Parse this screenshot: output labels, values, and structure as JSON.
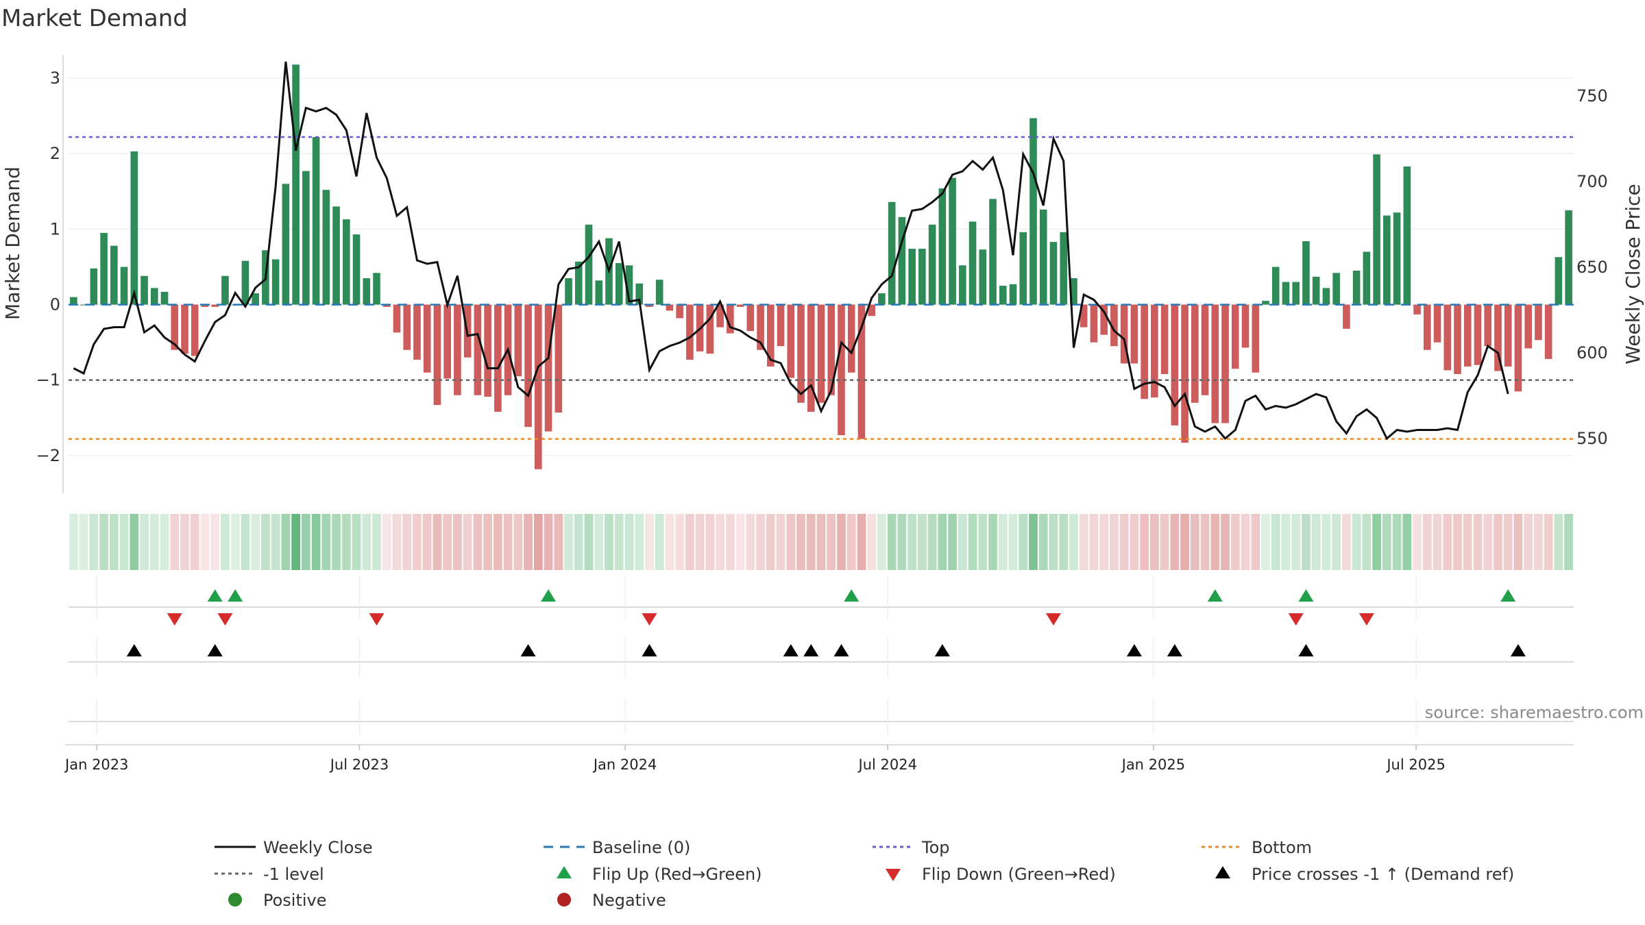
{
  "chart_data": {
    "type": "bar",
    "title": "Market Demand",
    "ylabel": "Market Demand",
    "y2label": "Weekly Close Price",
    "ylim": [
      -2.5,
      3.4
    ],
    "y2lim": [
      518,
      778
    ],
    "yticks": [
      -2,
      -1,
      0,
      1,
      2,
      3
    ],
    "y2ticks": [
      550,
      600,
      650,
      700,
      750
    ],
    "levels": {
      "top": 2.22,
      "bottom": -1.78,
      "ref": -1
    },
    "xtick_labels": [
      "Jan 2023",
      "Jul 2023",
      "Jan 2024",
      "Jul 2024",
      "Jan 2025",
      "Jul 2025"
    ],
    "xtick_weeks": [
      2.3,
      28.3,
      54.6,
      80.6,
      106.9,
      132.9
    ],
    "series": [
      {
        "name": "Market Demand",
        "values": [
          0.1,
          0,
          0.48,
          0.95,
          0.78,
          0.5,
          2.03,
          0.38,
          0.22,
          0.17,
          -0.6,
          -0.65,
          -0.68,
          -0.03,
          -0.03,
          0.38,
          0,
          0.58,
          0.15,
          0.72,
          0.6,
          1.6,
          3.18,
          1.77,
          2.22,
          1.52,
          1.3,
          1.13,
          0.93,
          0.35,
          0.42,
          -0.03,
          -0.37,
          -0.6,
          -0.73,
          -0.9,
          -1.33,
          -0.98,
          -1.2,
          -0.7,
          -1.2,
          -1.22,
          -1.42,
          -1.2,
          -0.95,
          -1.62,
          -2.18,
          -1.68,
          -1.43,
          0.35,
          0.57,
          1.06,
          0.32,
          0.88,
          0.55,
          0.52,
          0.28,
          -0.03,
          0.33,
          -0.08,
          -0.18,
          -0.73,
          -0.62,
          -0.65,
          -0.3,
          -0.38,
          -0.03,
          -0.35,
          -0.6,
          -0.82,
          -0.55,
          -0.97,
          -1.3,
          -1.42,
          -1.3,
          -1.2,
          -1.73,
          -0.9,
          -1.78,
          -0.15,
          0.15,
          1.36,
          1.16,
          0.74,
          0.74,
          1.06,
          1.54,
          1.68,
          0.52,
          1.1,
          0.73,
          1.4,
          0.25,
          0.27,
          0.96,
          2.47,
          1.26,
          0.83,
          0.96,
          0.35,
          -0.3,
          -0.5,
          -0.4,
          -0.55,
          -0.78,
          -0.78,
          -1.25,
          -1.23,
          -0.92,
          -1.6,
          -1.83,
          -1.3,
          -1.2,
          -1.57,
          -1.57,
          -0.85,
          -0.57,
          -0.9,
          0.05,
          0.5,
          0.3,
          0.3,
          0.84,
          0.37,
          0.22,
          0.42,
          -0.32,
          0.45,
          0.7,
          1.99,
          1.18,
          1.22,
          1.83,
          -0.13,
          -0.6,
          -0.5,
          -0.87,
          -0.92,
          -0.82,
          -0.8,
          -0.55,
          -0.88,
          -0.82,
          -1.15,
          -0.58,
          -0.47,
          -0.72,
          0.63,
          1.25
        ]
      },
      {
        "name": "Weekly Close",
        "axis": "right",
        "values": [
          591,
          588,
          605,
          614,
          615,
          615,
          635,
          612,
          616,
          609,
          605,
          599,
          595,
          607,
          618,
          622,
          635,
          627,
          638,
          643,
          697,
          770,
          718,
          743,
          741,
          743,
          739,
          730,
          703,
          740,
          714,
          702,
          680,
          685,
          654,
          652,
          653,
          628,
          645,
          610,
          611,
          591,
          591,
          602,
          580,
          575,
          592,
          597,
          640,
          649,
          650,
          656,
          665,
          648,
          665,
          630,
          631,
          590,
          601,
          604,
          606,
          609,
          614,
          620,
          630,
          615,
          613,
          609,
          606,
          596,
          594,
          582,
          576,
          581,
          566,
          578,
          606,
          600,
          615,
          632,
          640,
          645,
          665,
          683,
          684,
          688,
          693,
          704,
          706,
          712,
          707,
          714,
          695,
          657,
          716,
          705,
          686,
          725,
          712,
          603,
          634,
          631,
          624,
          613,
          608,
          579,
          582,
          583,
          580,
          569,
          576,
          557,
          554,
          557,
          550,
          555,
          572,
          575,
          567,
          569,
          568,
          570,
          573,
          576,
          574,
          560,
          553,
          563,
          567,
          562,
          550,
          555,
          554,
          555,
          555,
          555,
          556,
          555,
          577,
          587,
          604,
          600,
          576
        ]
      }
    ],
    "flip_up_weeks": [
      14,
      16,
      47,
      77,
      113,
      122,
      142
    ],
    "flip_down_weeks": [
      10,
      15,
      30,
      57,
      97,
      121,
      128
    ],
    "price_cross_weeks": [
      6,
      14,
      45,
      57,
      71,
      73,
      76,
      86,
      105,
      109,
      122,
      143
    ],
    "heat_strip": "demand intensity per week",
    "colors": {
      "positive": "#2e8b57",
      "negative": "#cd5c5c",
      "price": "#111111",
      "baseline": "#2878b8",
      "top": "#6a5acd",
      "bottom": "#e8892a",
      "ref": "#666666",
      "flip_up": "#21a04a",
      "flip_down": "#d62b2b",
      "cross": "#000000",
      "legend_positive": "#2e8b2e",
      "legend_negative": "#b22222"
    }
  },
  "legend": [
    {
      "label": "Weekly Close",
      "marker": "solid-line"
    },
    {
      "label": "Baseline (0)",
      "marker": "dashed-line"
    },
    {
      "label": "Top",
      "marker": "dotted-line"
    },
    {
      "label": "Bottom",
      "marker": "dotted-line"
    },
    {
      "label": "-1 level",
      "marker": "dotted-line"
    },
    {
      "label": "Flip Up (Red→Green)",
      "marker": "triangle-up"
    },
    {
      "label": "Flip Down (Green→Red)",
      "marker": "triangle-down"
    },
    {
      "label": "Price crosses -1 ↑ (Demand ref)",
      "marker": "triangle-up"
    },
    {
      "label": "Positive",
      "marker": "circle"
    },
    {
      "label": "Negative",
      "marker": "circle"
    }
  ],
  "source": "source: sharemaestro.com"
}
